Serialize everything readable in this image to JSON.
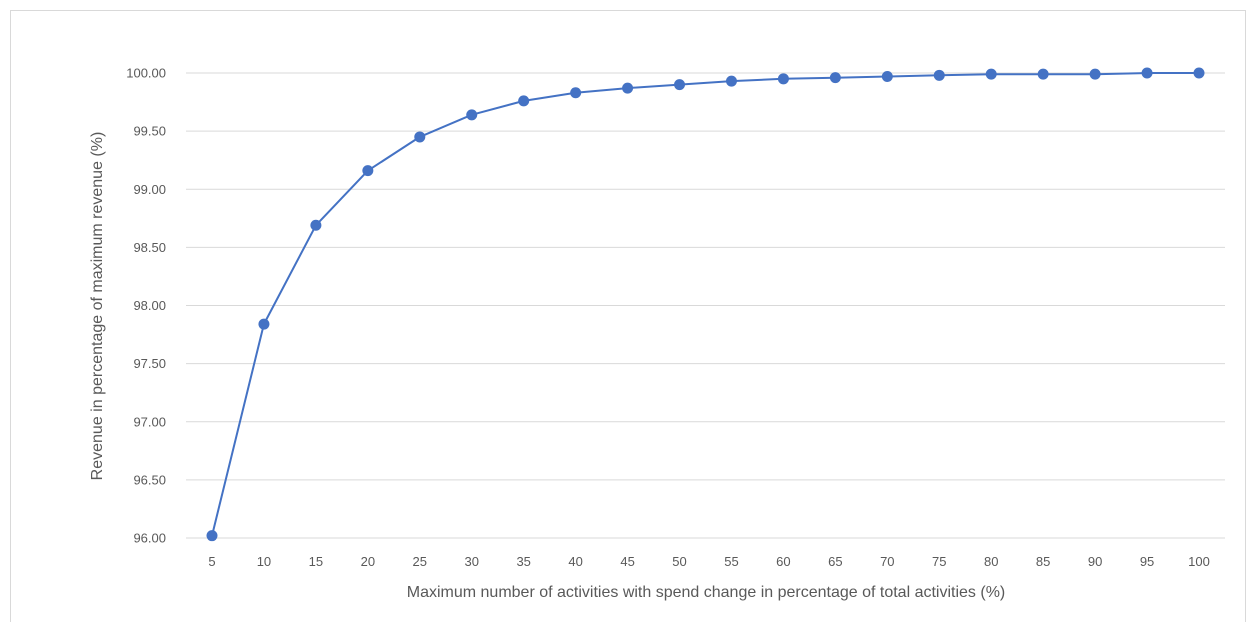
{
  "chart_data": {
    "type": "line",
    "title": "",
    "xlabel": "Maximum number of activities with spend change in percentage of total activities (%)",
    "ylabel": "Revenue in percentage of maximum revenue (%)",
    "categories": [
      "5",
      "10",
      "15",
      "20",
      "25",
      "30",
      "35",
      "40",
      "45",
      "50",
      "55",
      "60",
      "65",
      "70",
      "75",
      "80",
      "85",
      "90",
      "95",
      "100"
    ],
    "series": [
      {
        "values": [
          96.02,
          97.84,
          98.69,
          99.16,
          99.45,
          99.64,
          99.76,
          99.83,
          99.87,
          99.9,
          99.93,
          99.95,
          99.96,
          99.97,
          99.98,
          99.99,
          99.99,
          99.99,
          100.0,
          100.0
        ],
        "color": "#4472c4"
      }
    ],
    "ylim": [
      96.0,
      100.0
    ],
    "y_ticks": [
      "96.00",
      "96.50",
      "97.00",
      "97.50",
      "98.00",
      "98.50",
      "99.00",
      "99.50",
      "100.00"
    ],
    "grid": "horizontal",
    "legend": "none",
    "gridline_color": "#d9d9d9",
    "tick_color": "#595959"
  }
}
